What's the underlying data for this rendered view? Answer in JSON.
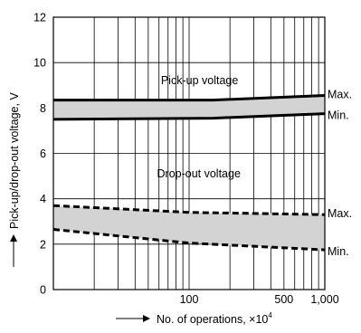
{
  "chart_data": {
    "type": "line",
    "xlabel": "No. of operations, ×10",
    "xlabel_exponent": "4",
    "ylabel": "Pick-up/drop-out voltage, V",
    "x_scale": "log",
    "xlim": [
      10,
      1000
    ],
    "ylim": [
      0,
      12
    ],
    "x_ticks": [
      {
        "value": 100,
        "label": "100"
      },
      {
        "value": 500,
        "label": "500"
      },
      {
        "value": 1000,
        "label": "1,000"
      }
    ],
    "y_ticks": [
      {
        "value": 0,
        "label": "0"
      },
      {
        "value": 2,
        "label": "2"
      },
      {
        "value": 4,
        "label": "4"
      },
      {
        "value": 6,
        "label": "6"
      },
      {
        "value": 8,
        "label": "8"
      },
      {
        "value": 10,
        "label": "10"
      },
      {
        "value": 12,
        "label": "12"
      }
    ],
    "grid": true,
    "bands": [
      {
        "name": "Pick-up voltage",
        "style": "solid",
        "fill": "#d3d3d3",
        "upper": {
          "label": "Max.",
          "points": [
            [
              10,
              8.35
            ],
            [
              150,
              8.35
            ],
            [
              1000,
              8.55
            ]
          ]
        },
        "lower": {
          "label": "Min.",
          "points": [
            [
              10,
              7.5
            ],
            [
              150,
              7.55
            ],
            [
              1000,
              7.75
            ]
          ]
        }
      },
      {
        "name": "Drop-out voltage",
        "style": "dashed",
        "fill": "#d3d3d3",
        "upper": {
          "label": "Max.",
          "points": [
            [
              10,
              3.7
            ],
            [
              100,
              3.4
            ],
            [
              1000,
              3.3
            ]
          ]
        },
        "lower": {
          "label": "Min.",
          "points": [
            [
              10,
              2.65
            ],
            [
              100,
              2.05
            ],
            [
              1000,
              1.75
            ]
          ]
        }
      }
    ]
  }
}
